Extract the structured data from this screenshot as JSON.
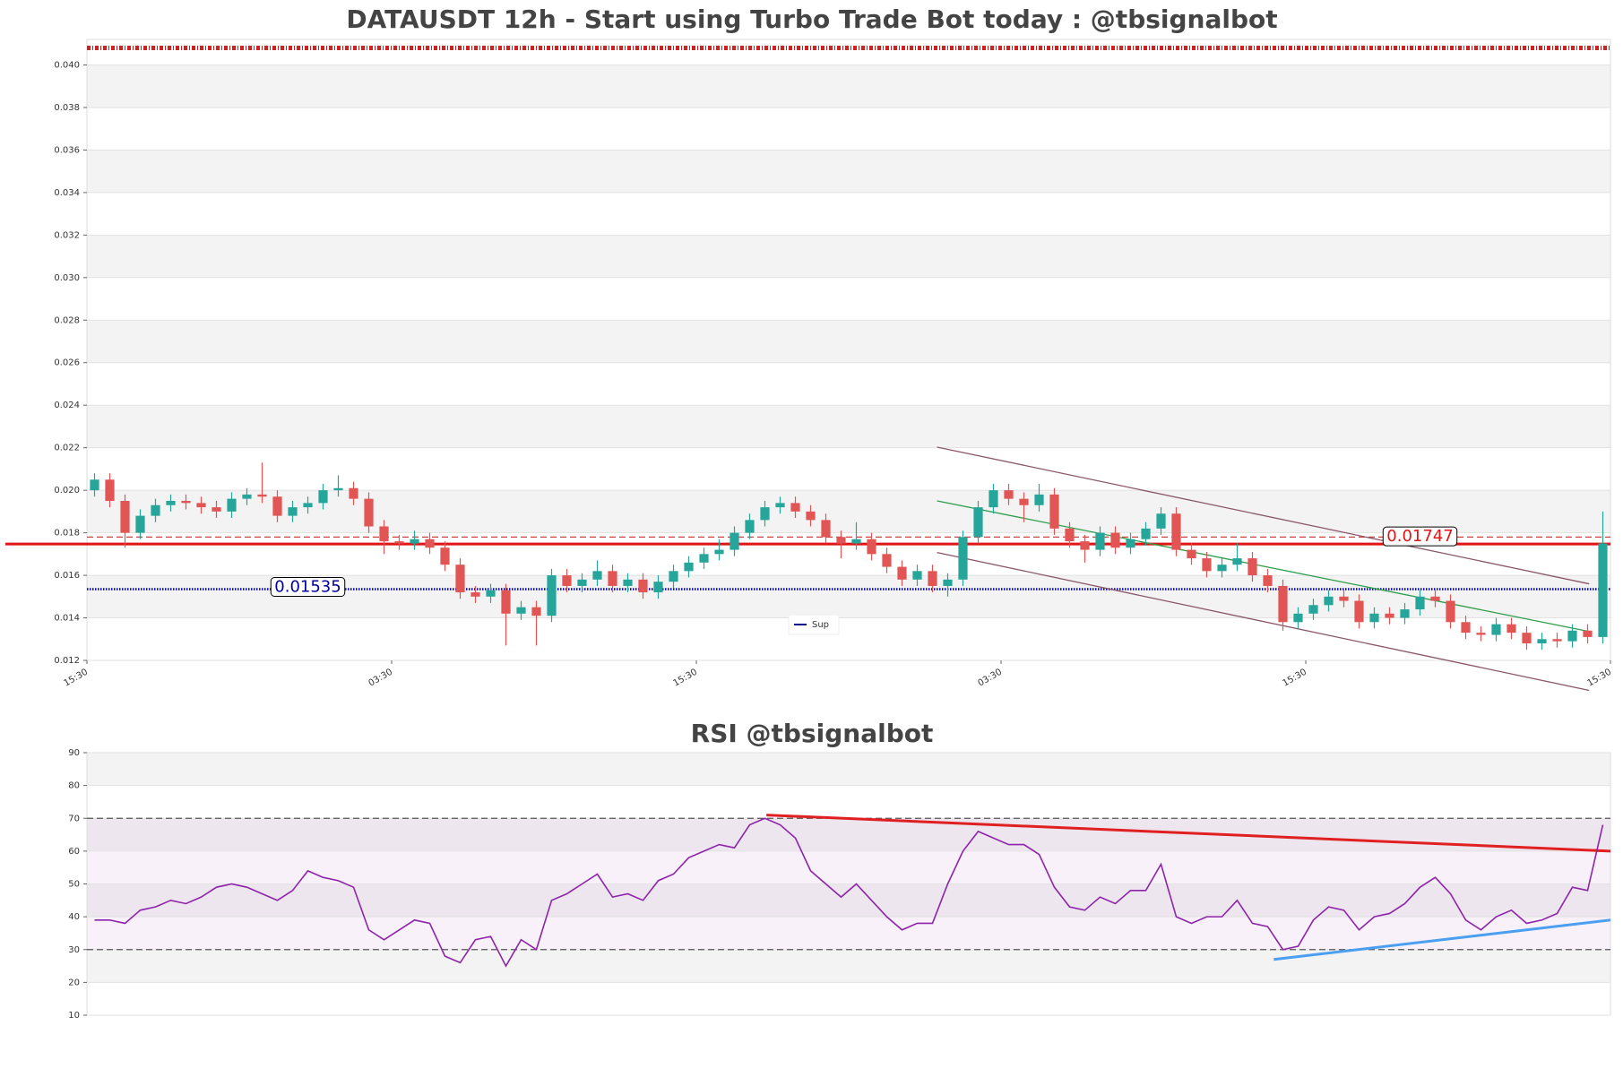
{
  "chart_data": [
    {
      "type": "candlestick",
      "title": "DATAUSDT 12h - Start using Turbo Trade Bot today : @tbsignalbot",
      "candles": [
        [
          0.02,
          0.0208,
          0.0197,
          0.0205
        ],
        [
          0.0205,
          0.0208,
          0.0192,
          0.0195
        ],
        [
          0.0195,
          0.0198,
          0.0173,
          0.018
        ],
        [
          0.018,
          0.0191,
          0.0177,
          0.0188
        ],
        [
          0.0188,
          0.0196,
          0.0185,
          0.0193
        ],
        [
          0.0193,
          0.0198,
          0.019,
          0.0195
        ],
        [
          0.0195,
          0.0198,
          0.0191,
          0.0194
        ],
        [
          0.0194,
          0.0197,
          0.0189,
          0.0192
        ],
        [
          0.0192,
          0.0195,
          0.0187,
          0.019
        ],
        [
          0.019,
          0.0199,
          0.0187,
          0.0196
        ],
        [
          0.0196,
          0.0201,
          0.0193,
          0.0198
        ],
        [
          0.0198,
          0.0213,
          0.0194,
          0.0197
        ],
        [
          0.0197,
          0.02,
          0.0185,
          0.0188
        ],
        [
          0.0188,
          0.0195,
          0.0185,
          0.0192
        ],
        [
          0.0192,
          0.0197,
          0.0189,
          0.0194
        ],
        [
          0.0194,
          0.0203,
          0.0191,
          0.02
        ],
        [
          0.02,
          0.0207,
          0.0197,
          0.0201
        ],
        [
          0.0201,
          0.0204,
          0.0193,
          0.0196
        ],
        [
          0.0196,
          0.0199,
          0.018,
          0.0183
        ],
        [
          0.0183,
          0.0186,
          0.017,
          0.0176
        ],
        [
          0.0176,
          0.0179,
          0.0172,
          0.0175
        ],
        [
          0.0175,
          0.0181,
          0.0172,
          0.0177
        ],
        [
          0.0177,
          0.018,
          0.017,
          0.0173
        ],
        [
          0.0173,
          0.0176,
          0.0162,
          0.0165
        ],
        [
          0.0165,
          0.0168,
          0.0149,
          0.0152
        ],
        [
          0.0152,
          0.0155,
          0.0147,
          0.015
        ],
        [
          0.015,
          0.0156,
          0.0147,
          0.0153
        ],
        [
          0.0153,
          0.0156,
          0.0127,
          0.0142
        ],
        [
          0.0142,
          0.0148,
          0.0139,
          0.0145
        ],
        [
          0.0145,
          0.0148,
          0.0127,
          0.0141
        ],
        [
          0.0141,
          0.0163,
          0.0138,
          0.016
        ],
        [
          0.016,
          0.0163,
          0.0152,
          0.0155
        ],
        [
          0.0155,
          0.0161,
          0.0152,
          0.0158
        ],
        [
          0.0158,
          0.0167,
          0.0155,
          0.0162
        ],
        [
          0.0162,
          0.0165,
          0.0152,
          0.0155
        ],
        [
          0.0155,
          0.0161,
          0.0152,
          0.0158
        ],
        [
          0.0158,
          0.0161,
          0.0149,
          0.0152
        ],
        [
          0.0152,
          0.016,
          0.0149,
          0.0157
        ],
        [
          0.0157,
          0.0165,
          0.0154,
          0.0162
        ],
        [
          0.0162,
          0.0169,
          0.0159,
          0.0166
        ],
        [
          0.0166,
          0.0173,
          0.0163,
          0.017
        ],
        [
          0.017,
          0.0177,
          0.0167,
          0.0172
        ],
        [
          0.0172,
          0.0183,
          0.0169,
          0.018
        ],
        [
          0.018,
          0.0189,
          0.0177,
          0.0186
        ],
        [
          0.0186,
          0.0195,
          0.0183,
          0.0192
        ],
        [
          0.0192,
          0.0197,
          0.0189,
          0.0194
        ],
        [
          0.0194,
          0.0197,
          0.0187,
          0.019
        ],
        [
          0.019,
          0.0193,
          0.0183,
          0.0186
        ],
        [
          0.0186,
          0.0189,
          0.0175,
          0.0178
        ],
        [
          0.0178,
          0.0181,
          0.0168,
          0.0175
        ],
        [
          0.0175,
          0.0185,
          0.0172,
          0.0177
        ],
        [
          0.0177,
          0.018,
          0.0167,
          0.017
        ],
        [
          0.017,
          0.0173,
          0.0161,
          0.0164
        ],
        [
          0.0164,
          0.0167,
          0.0155,
          0.0158
        ],
        [
          0.0158,
          0.0165,
          0.0155,
          0.0162
        ],
        [
          0.0162,
          0.0165,
          0.0152,
          0.0155
        ],
        [
          0.0155,
          0.0161,
          0.015,
          0.0158
        ],
        [
          0.0158,
          0.0181,
          0.0155,
          0.0178
        ],
        [
          0.0178,
          0.0195,
          0.0175,
          0.0192
        ],
        [
          0.0192,
          0.0203,
          0.0189,
          0.02
        ],
        [
          0.02,
          0.0203,
          0.0193,
          0.0196
        ],
        [
          0.0196,
          0.0199,
          0.0185,
          0.0193
        ],
        [
          0.0193,
          0.0203,
          0.019,
          0.0198
        ],
        [
          0.0198,
          0.0201,
          0.0179,
          0.0182
        ],
        [
          0.0182,
          0.0185,
          0.0173,
          0.0176
        ],
        [
          0.0176,
          0.0179,
          0.0166,
          0.0172
        ],
        [
          0.0172,
          0.0183,
          0.0169,
          0.018
        ],
        [
          0.018,
          0.0183,
          0.017,
          0.0173
        ],
        [
          0.0173,
          0.018,
          0.017,
          0.0177
        ],
        [
          0.0177,
          0.0185,
          0.0174,
          0.0182
        ],
        [
          0.0182,
          0.0192,
          0.0179,
          0.0189
        ],
        [
          0.0189,
          0.0192,
          0.0169,
          0.0172
        ],
        [
          0.0172,
          0.0175,
          0.0165,
          0.0168
        ],
        [
          0.0168,
          0.0171,
          0.0159,
          0.0162
        ],
        [
          0.0162,
          0.0168,
          0.0159,
          0.0165
        ],
        [
          0.0165,
          0.0175,
          0.0162,
          0.0168
        ],
        [
          0.0168,
          0.0171,
          0.0157,
          0.016
        ],
        [
          0.016,
          0.0163,
          0.0152,
          0.0155
        ],
        [
          0.0155,
          0.0158,
          0.0134,
          0.0138
        ],
        [
          0.0138,
          0.0145,
          0.0135,
          0.0142
        ],
        [
          0.0142,
          0.0149,
          0.0139,
          0.0146
        ],
        [
          0.0146,
          0.0153,
          0.0143,
          0.015
        ],
        [
          0.015,
          0.0153,
          0.0145,
          0.0148
        ],
        [
          0.0148,
          0.0151,
          0.0135,
          0.0138
        ],
        [
          0.0138,
          0.0145,
          0.0135,
          0.0142
        ],
        [
          0.0142,
          0.0145,
          0.0137,
          0.014
        ],
        [
          0.014,
          0.0147,
          0.0137,
          0.0144
        ],
        [
          0.0144,
          0.0153,
          0.0141,
          0.015
        ],
        [
          0.015,
          0.0153,
          0.0145,
          0.0148
        ],
        [
          0.0148,
          0.0151,
          0.0135,
          0.0138
        ],
        [
          0.0138,
          0.0141,
          0.013,
          0.0133
        ],
        [
          0.0133,
          0.0136,
          0.0129,
          0.0132
        ],
        [
          0.0132,
          0.014,
          0.0129,
          0.0137
        ],
        [
          0.0137,
          0.014,
          0.013,
          0.0133
        ],
        [
          0.0133,
          0.0136,
          0.0125,
          0.0128
        ],
        [
          0.0128,
          0.0133,
          0.0125,
          0.013
        ],
        [
          0.013,
          0.0133,
          0.0126,
          0.0129
        ],
        [
          0.0129,
          0.0137,
          0.0126,
          0.0134
        ],
        [
          0.0134,
          0.0137,
          0.0128,
          0.0131
        ],
        [
          0.0131,
          0.019,
          0.0128,
          0.0175
        ]
      ],
      "up_color": "#26a69a",
      "down_color": "#e25555",
      "xlim": [
        0,
        100
      ],
      "xticks": [
        {
          "value": 0,
          "label": "15:30"
        },
        {
          "value": 20,
          "label": "03:30"
        },
        {
          "value": 40,
          "label": "15:30"
        },
        {
          "value": 60,
          "label": "03:30"
        },
        {
          "value": 80,
          "label": "15:30"
        },
        {
          "value": 100,
          "label": "15:30"
        }
      ],
      "ylim": [
        0.012,
        0.0412
      ],
      "yticks": [
        {
          "value": 0.012,
          "label": "0.012"
        },
        {
          "value": 0.014,
          "label": "0.014"
        },
        {
          "value": 0.016,
          "label": "0.016"
        },
        {
          "value": 0.018,
          "label": "0.018"
        },
        {
          "value": 0.02,
          "label": "0.020"
        },
        {
          "value": 0.022,
          "label": "0.022"
        },
        {
          "value": 0.024,
          "label": "0.024"
        },
        {
          "value": 0.026,
          "label": "0.026"
        },
        {
          "value": 0.028,
          "label": "0.028"
        },
        {
          "value": 0.03,
          "label": "0.030"
        },
        {
          "value": 0.032,
          "label": "0.032"
        },
        {
          "value": 0.034,
          "label": "0.034"
        },
        {
          "value": 0.036,
          "label": "0.036"
        },
        {
          "value": 0.038,
          "label": "0.038"
        },
        {
          "value": 0.04,
          "label": "0.040"
        }
      ],
      "grid": true,
      "hlines": [
        {
          "value": 0.01747,
          "label": "0.01747",
          "color": "#e01515",
          "style": "solid"
        },
        {
          "value": 0.01535,
          "label": "0.01535",
          "color": "#0000a0",
          "style": "dotted"
        },
        {
          "value": 0.0178,
          "color": "#d04040",
          "style": "dashed"
        },
        {
          "value": 0.0408,
          "color": "#d02020",
          "style": "marker"
        }
      ],
      "trendlines": [
        {
          "x": [
            55.8,
            98.6
          ],
          "y": [
            0.02203,
            0.0156
          ],
          "color": "#8a5668"
        },
        {
          "x": [
            55.8,
            98.6
          ],
          "y": [
            0.01707,
            0.01059
          ],
          "color": "#8a5668"
        },
        {
          "x": [
            55.8,
            98.6
          ],
          "y": [
            0.0195,
            0.01336
          ],
          "color": "#2e9e4a"
        }
      ],
      "legend": {
        "label": "Sup",
        "color": "#00008b"
      }
    },
    {
      "type": "line",
      "title": "RSI @tbsignalbot",
      "values": [
        39,
        39,
        38,
        42,
        43,
        45,
        44,
        46,
        49,
        50,
        49,
        47,
        45,
        48,
        54,
        52,
        51,
        49,
        36,
        33,
        36,
        39,
        38,
        28,
        26,
        33,
        34,
        25,
        33,
        30,
        45,
        47,
        50,
        53,
        46,
        47,
        45,
        51,
        53,
        58,
        60,
        62,
        61,
        68,
        70,
        68,
        64,
        54,
        50,
        46,
        50,
        45,
        40,
        36,
        38,
        38,
        50,
        60,
        66,
        64,
        62,
        62,
        59,
        49,
        43,
        42,
        46,
        44,
        48,
        48,
        56,
        40,
        38,
        40,
        40,
        45,
        38,
        37,
        30,
        31,
        39,
        43,
        42,
        36,
        40,
        41,
        44,
        49,
        52,
        47,
        39,
        36,
        40,
        42,
        38,
        39,
        41,
        49,
        48,
        68
      ],
      "color": "#8e24aa",
      "xlim": [
        0,
        100
      ],
      "ylim": [
        10,
        90
      ],
      "yticks": [
        10,
        20,
        30,
        40,
        50,
        60,
        70,
        80,
        90
      ],
      "grid": true,
      "hlines": [
        {
          "value": 70,
          "color": "#555555",
          "style": "dashed"
        },
        {
          "value": 30,
          "color": "#555555",
          "style": "dashed"
        }
      ],
      "trendlines": [
        {
          "x": [
            44.6,
            100
          ],
          "y": [
            71,
            60
          ],
          "color": "#e02020"
        },
        {
          "x": [
            77.9,
            100
          ],
          "y": [
            27,
            39
          ],
          "color": "#4a9ff0"
        }
      ]
    }
  ]
}
